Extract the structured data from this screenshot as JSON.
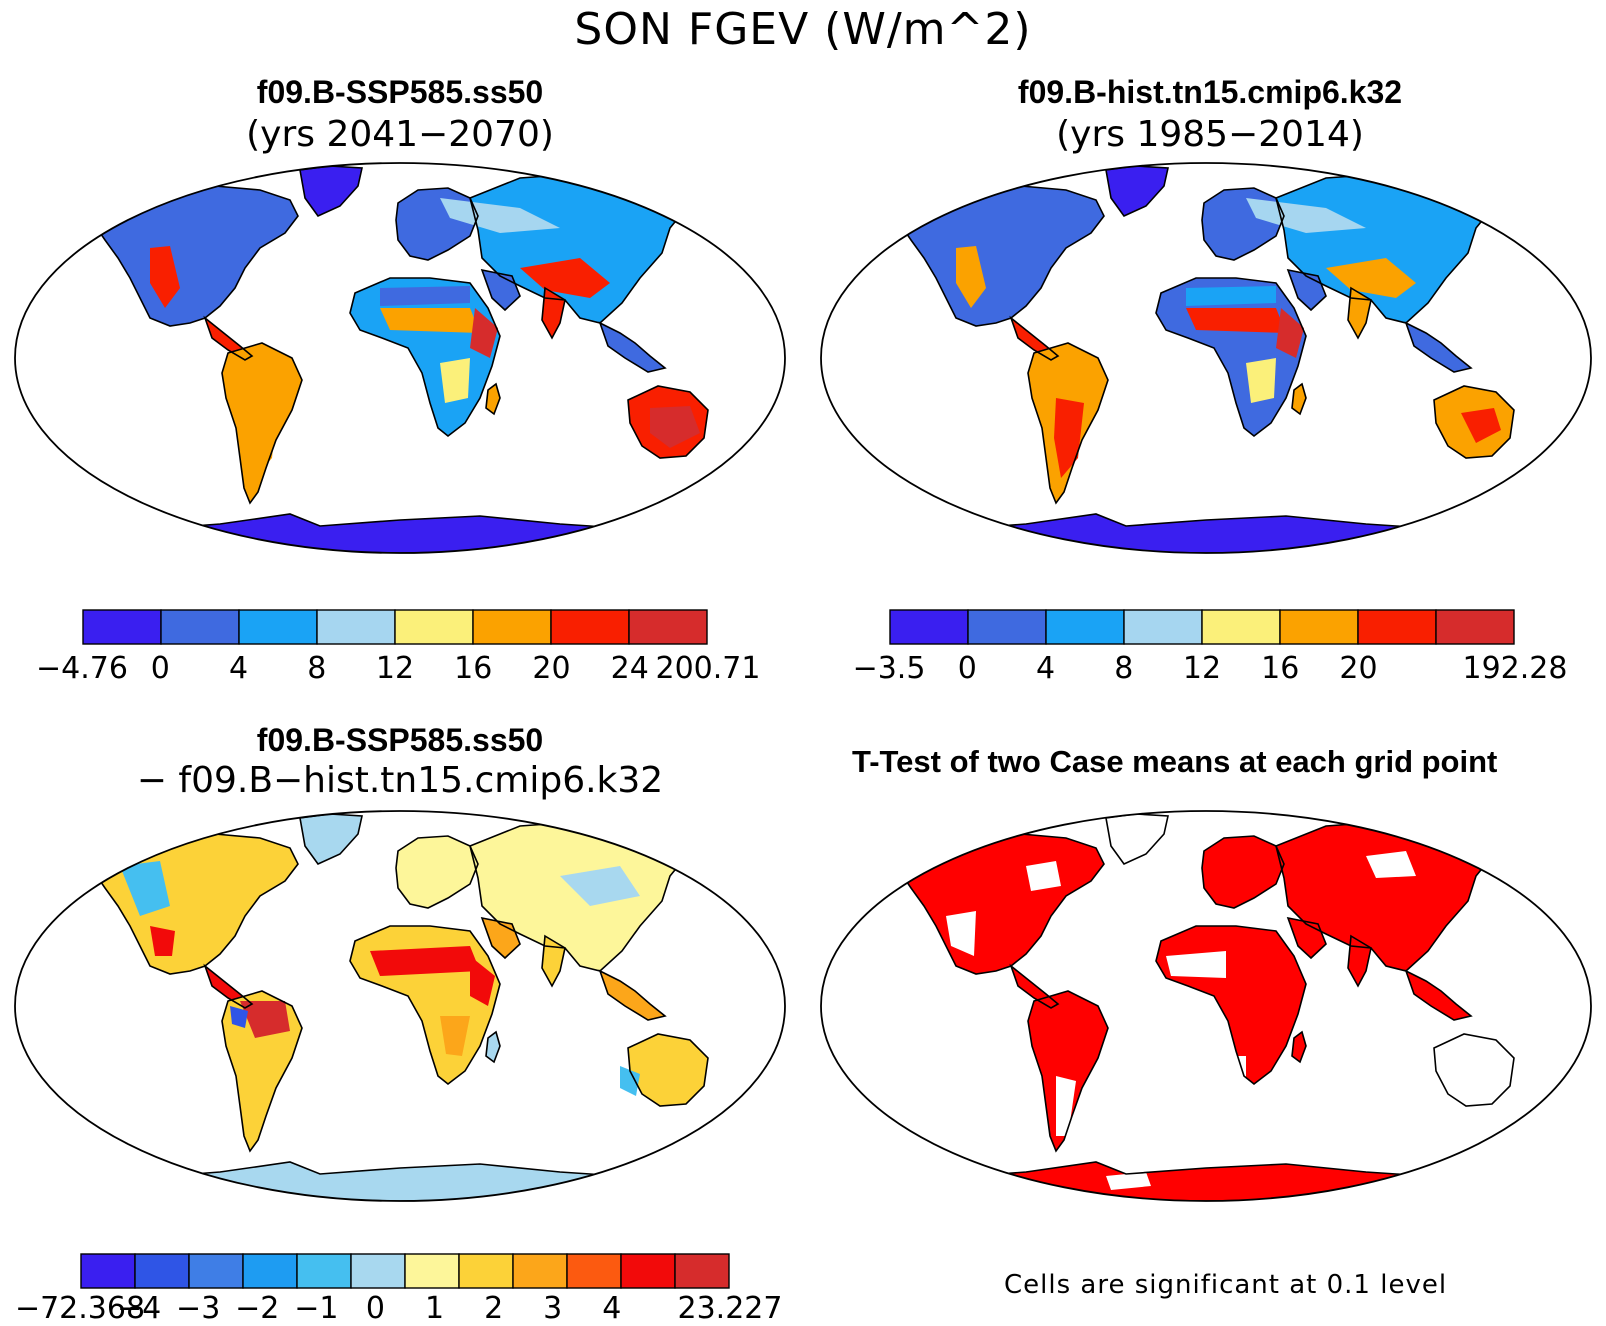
{
  "figure": {
    "title": "SON FGEV (W/m^2)"
  },
  "panels": [
    {
      "id": "p1",
      "title": "f09.B-SSP585.ss50",
      "subtitle": "(yrs 2041−2070)",
      "colorbar": {
        "colors": [
          "#3a1ff0",
          "#3f6ae0",
          "#1aa3f5",
          "#a6d6f0",
          "#fbf07a",
          "#fba200",
          "#f91f00",
          "#d62c2c"
        ],
        "ticks": [
          "−4.76",
          "0",
          "4",
          "8",
          "12",
          "16",
          "20",
          "24",
          "200.71"
        ]
      }
    },
    {
      "id": "p2",
      "title": "f09.B-hist.tn15.cmip6.k32",
      "subtitle": "(yrs 1985−2014)",
      "colorbar": {
        "colors": [
          "#3a1ff0",
          "#3f6ae0",
          "#1aa3f5",
          "#a6d6f0",
          "#fbf07a",
          "#fba200",
          "#f91f00",
          "#d62c2c"
        ],
        "ticks": [
          "−3.5",
          "0",
          "4",
          "8",
          "12",
          "16",
          "20",
          "",
          "192.28"
        ]
      }
    },
    {
      "id": "p3",
      "title": "f09.B-SSP585.ss50",
      "subtitle": "− f09.B−hist.tn15.cmip6.k32",
      "colorbar": {
        "colors": [
          "#3a1ff0",
          "#2f55e6",
          "#3f7ee6",
          "#1e9cf2",
          "#45bff0",
          "#a8d8ef",
          "#fdf69a",
          "#fcd238",
          "#fca61a",
          "#fc5a10",
          "#f20a0a",
          "#d62c2c"
        ],
        "ticks": [
          "−72.368",
          "−4",
          "−3",
          "−2",
          "−1",
          "0",
          "1",
          "2",
          "3",
          "4",
          "",
          "23.227"
        ]
      }
    },
    {
      "id": "p4",
      "title": "T-Test of two Case means at each grid point",
      "note": "Cells are significant at 0.1 level"
    }
  ]
}
